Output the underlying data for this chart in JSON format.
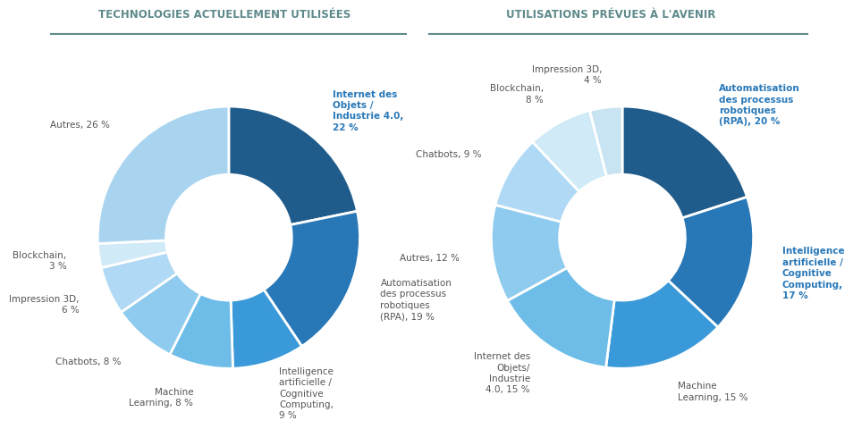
{
  "title_left": "TECHNOLOGIES ACTUELLEMENT UTILISÉES",
  "title_right": "UTILISATIONS PRÉVUES À L'AVENIR",
  "title_color": "#5f8a8b",
  "chart1": {
    "labels": [
      "Internet des\nObjets /\nIndustrie 4.0,\n22 %",
      "Automatisation\ndes processus\nrobotiques\n(RPA), 19 %",
      "Intelligence\nartificielle /\nCognitive\nComputing,\n9 %",
      "Machine\nLearning, 8 %",
      "Chatbots, 8 %",
      "Impression 3D,\n6 %",
      "Blockchain,\n3 %",
      "Autres, 26 %"
    ],
    "values": [
      22,
      19,
      9,
      8,
      8,
      6,
      3,
      26
    ],
    "colors": [
      "#1f5c8b",
      "#2878b8",
      "#3a9ad9",
      "#6dbde8",
      "#8ecbee",
      "#b0d9f5",
      "#d0eaf8",
      "#a8d4f0"
    ],
    "bold_indices": [
      0
    ],
    "bold_color": "#2878b8",
    "normal_color": "#555555"
  },
  "chart2": {
    "labels": [
      "Automatisation\ndes processus\nrobotiques\n(RPA), 20 %",
      "Intelligence\nartificielle /\nCognitive\nComputing,\n17 %",
      "Machine\nLearning, 15 %",
      "Internet des\nObjets/\nIndustrie\n4.0, 15 %",
      "Autres, 12 %",
      "Chatbots, 9 %",
      "Blockchain,\n8 %",
      "Impression 3D,\n4 %"
    ],
    "values": [
      20,
      17,
      15,
      15,
      12,
      9,
      8,
      4
    ],
    "colors": [
      "#1f5c8b",
      "#2878b8",
      "#3a9ad9",
      "#6dbde8",
      "#8ecbee",
      "#b0d9f5",
      "#d0eaf8",
      "#c8e4f2"
    ],
    "bold_indices": [
      0,
      1
    ],
    "bold_color": "#2878b8",
    "normal_color": "#555555"
  },
  "background_color": "#ffffff",
  "donut_width": 0.52,
  "wedge_edge_color": "white",
  "wedge_linewidth": 2.0,
  "label_fontsize": 7.5,
  "label_r": 1.25
}
